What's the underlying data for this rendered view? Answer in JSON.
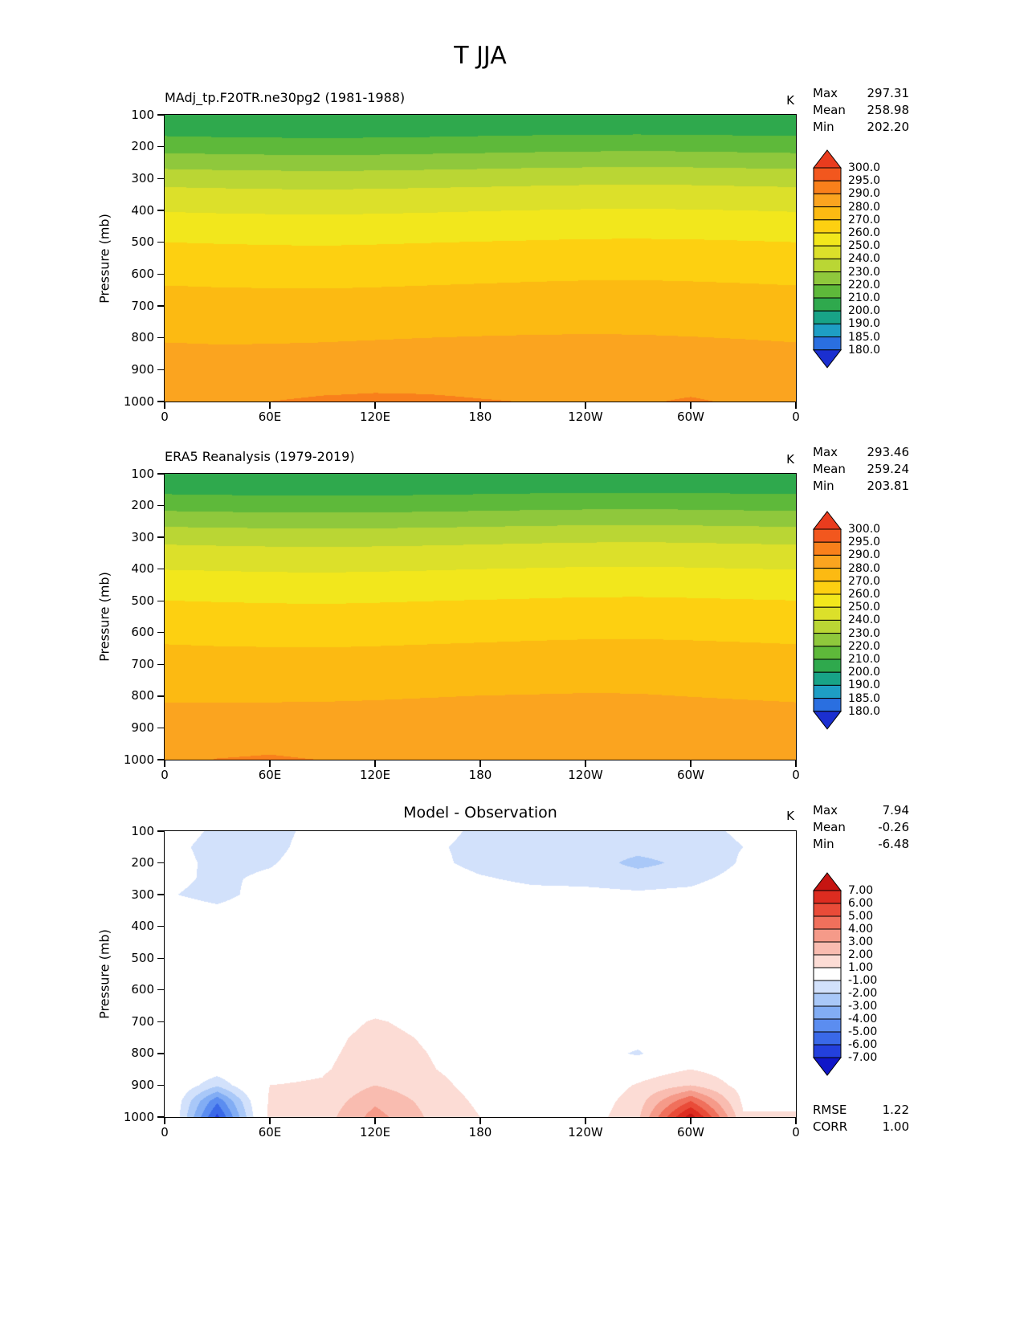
{
  "title": "T JJA",
  "chart_data": [
    {
      "type": "filled_contour",
      "title": "MAdj_tp.F20TR.ne30pg2 (1981-1988)",
      "unit": "K",
      "ylabel": "Pressure (mb)",
      "stats": [
        {
          "label": "Max",
          "value": "297.31"
        },
        {
          "label": "Mean",
          "value": "258.98"
        },
        {
          "label": "Min",
          "value": "202.20"
        }
      ],
      "x_ticks": [
        "0",
        "60E",
        "120E",
        "180",
        "120W",
        "60W",
        "0"
      ],
      "y_ticks": [
        100,
        200,
        300,
        400,
        500,
        600,
        700,
        800,
        900,
        1000
      ],
      "colorbar_labels": [
        "300.0",
        "295.0",
        "290.0",
        "280.0",
        "270.0",
        "260.0",
        "250.0",
        "240.0",
        "230.0",
        "220.0",
        "210.0",
        "200.0",
        "190.0",
        "185.0",
        "180.0"
      ],
      "levels": [
        180,
        185,
        190,
        200,
        210,
        220,
        230,
        240,
        250,
        260,
        270,
        280,
        290,
        295,
        300
      ],
      "colors": [
        "#1b2fd0",
        "#2a6fe0",
        "#1e9ec4",
        "#18a387",
        "#2fa94d",
        "#5eb93a",
        "#8fc83c",
        "#bad634",
        "#dce02a",
        "#f2e71c",
        "#fdd011",
        "#fcba12",
        "#fba41f",
        "#f9801b",
        "#f2571e",
        "#e93c1e"
      ],
      "lons": [
        0,
        30,
        60,
        90,
        120,
        150,
        180,
        210,
        240,
        270,
        300,
        330,
        360
      ],
      "pressures": [
        100,
        150,
        200,
        250,
        300,
        350,
        400,
        450,
        500,
        550,
        600,
        650,
        700,
        750,
        800,
        850,
        900,
        950,
        1000
      ],
      "values": [
        [
          203.0,
          202.8,
          202.6,
          202.5,
          202.6,
          202.8,
          203.0,
          203.2,
          203.4,
          203.5,
          203.4,
          203.2,
          203.0
        ],
        [
          207.0,
          206.5,
          206.2,
          206.0,
          206.2,
          206.5,
          207.0,
          207.4,
          207.7,
          207.8,
          207.6,
          207.3,
          207.0
        ],
        [
          216.0,
          215.4,
          215.0,
          214.8,
          215.0,
          215.5,
          216.0,
          216.5,
          217.0,
          217.2,
          217.0,
          216.5,
          216.0
        ],
        [
          226.0,
          225.4,
          225.0,
          224.8,
          225.0,
          225.5,
          226.0,
          226.6,
          227.0,
          227.2,
          227.0,
          226.5,
          226.0
        ],
        [
          236.0,
          235.4,
          235.0,
          234.8,
          235.0,
          235.5,
          236.0,
          236.6,
          237.0,
          237.2,
          237.0,
          236.5,
          236.0
        ],
        [
          243.5,
          243.0,
          242.6,
          242.4,
          242.7,
          243.1,
          243.6,
          244.0,
          244.4,
          244.6,
          244.3,
          243.9,
          243.5
        ],
        [
          249.5,
          249.0,
          248.7,
          248.5,
          248.8,
          249.2,
          249.7,
          250.1,
          250.5,
          250.6,
          250.4,
          250.0,
          249.5
        ],
        [
          255.0,
          254.6,
          254.3,
          254.1,
          254.4,
          254.8,
          255.2,
          255.6,
          256.0,
          256.1,
          255.9,
          255.5,
          255.0
        ],
        [
          260.0,
          259.6,
          259.3,
          259.1,
          259.4,
          259.8,
          260.2,
          260.6,
          261.0,
          261.1,
          260.9,
          260.5,
          260.0
        ],
        [
          264.0,
          263.6,
          263.3,
          263.2,
          263.5,
          263.9,
          264.3,
          264.7,
          265.0,
          265.1,
          264.9,
          264.5,
          264.0
        ],
        [
          267.5,
          267.1,
          266.9,
          266.8,
          267.1,
          267.5,
          267.9,
          268.3,
          268.6,
          268.7,
          268.4,
          268.0,
          267.5
        ],
        [
          271.0,
          270.6,
          270.4,
          270.3,
          270.6,
          271.0,
          271.4,
          271.8,
          272.1,
          272.2,
          271.9,
          271.5,
          271.0
        ],
        [
          274.0,
          273.6,
          273.4,
          273.4,
          273.7,
          274.1,
          274.5,
          274.9,
          275.2,
          275.2,
          274.9,
          274.5,
          274.0
        ],
        [
          276.8,
          276.4,
          276.3,
          276.4,
          276.7,
          277.1,
          277.5,
          277.8,
          278.0,
          278.0,
          277.7,
          277.3,
          276.8
        ],
        [
          279.3,
          279.0,
          279.0,
          279.2,
          279.6,
          280.0,
          280.3,
          280.5,
          280.6,
          280.5,
          280.2,
          279.8,
          279.3
        ],
        [
          281.7,
          281.4,
          281.6,
          282.0,
          282.4,
          282.8,
          283.0,
          283.1,
          283.0,
          282.8,
          282.6,
          282.2,
          281.7
        ],
        [
          284.0,
          283.8,
          284.2,
          284.8,
          285.3,
          285.6,
          285.6,
          285.5,
          285.2,
          285.0,
          285.2,
          284.6,
          284.0
        ],
        [
          286.3,
          286.2,
          287.0,
          288.0,
          288.6,
          288.6,
          288.2,
          287.8,
          287.4,
          287.2,
          288.0,
          286.9,
          286.3
        ],
        [
          288.5,
          288.6,
          290.0,
          291.2,
          291.6,
          291.2,
          290.4,
          289.8,
          289.3,
          289.2,
          290.8,
          289.0,
          288.5
        ]
      ]
    },
    {
      "type": "filled_contour",
      "title": "ERA5 Reanalysis (1979-2019)",
      "unit": "K",
      "ylabel": "Pressure (mb)",
      "stats": [
        {
          "label": "Max",
          "value": "293.46"
        },
        {
          "label": "Mean",
          "value": "259.24"
        },
        {
          "label": "Min",
          "value": "203.81"
        }
      ],
      "x_ticks": [
        "0",
        "60E",
        "120E",
        "180",
        "120W",
        "60W",
        "0"
      ],
      "y_ticks": [
        100,
        200,
        300,
        400,
        500,
        600,
        700,
        800,
        900,
        1000
      ],
      "colorbar_labels": [
        "300.0",
        "295.0",
        "290.0",
        "280.0",
        "270.0",
        "260.0",
        "250.0",
        "240.0",
        "230.0",
        "220.0",
        "210.0",
        "200.0",
        "190.0",
        "185.0",
        "180.0"
      ],
      "levels": [
        180,
        185,
        190,
        200,
        210,
        220,
        230,
        240,
        250,
        260,
        270,
        280,
        290,
        295,
        300
      ],
      "colors": [
        "#1b2fd0",
        "#2a6fe0",
        "#1e9ec4",
        "#18a387",
        "#2fa94d",
        "#5eb93a",
        "#8fc83c",
        "#bad634",
        "#dce02a",
        "#f2e71c",
        "#fdd011",
        "#fcba12",
        "#fba41f",
        "#f9801b",
        "#f2571e",
        "#e93c1e"
      ],
      "lons": [
        0,
        30,
        60,
        90,
        120,
        150,
        180,
        210,
        240,
        270,
        300,
        330,
        360
      ],
      "pressures": [
        100,
        150,
        200,
        250,
        300,
        350,
        400,
        450,
        500,
        550,
        600,
        650,
        700,
        750,
        800,
        850,
        900,
        950,
        1000
      ],
      "values": [
        [
          203.6,
          203.3,
          203.1,
          203.0,
          203.1,
          203.3,
          203.6,
          203.9,
          204.1,
          204.2,
          204.0,
          203.8,
          203.6
        ],
        [
          207.4,
          207.0,
          206.7,
          206.5,
          206.7,
          207.0,
          207.4,
          207.8,
          208.1,
          208.2,
          208.0,
          207.7,
          207.4
        ],
        [
          216.6,
          216.1,
          215.7,
          215.5,
          215.7,
          216.1,
          216.6,
          217.1,
          217.5,
          217.7,
          217.4,
          217.0,
          216.6
        ],
        [
          226.6,
          226.1,
          225.7,
          225.5,
          225.7,
          226.1,
          226.6,
          227.2,
          227.6,
          227.8,
          227.5,
          227.0,
          226.6
        ],
        [
          236.6,
          236.1,
          235.7,
          235.4,
          235.7,
          236.1,
          236.6,
          237.2,
          237.6,
          237.8,
          237.5,
          237.0,
          236.6
        ],
        [
          244.0,
          243.5,
          243.1,
          242.9,
          243.2,
          243.6,
          244.1,
          244.5,
          244.9,
          245.1,
          244.8,
          244.4,
          244.0
        ],
        [
          249.8,
          249.4,
          249.0,
          248.8,
          249.1,
          249.5,
          250.0,
          250.4,
          250.8,
          250.9,
          250.6,
          250.2,
          249.8
        ],
        [
          255.2,
          254.8,
          254.5,
          254.3,
          254.6,
          255.0,
          255.4,
          255.8,
          256.2,
          256.3,
          256.0,
          255.6,
          255.2
        ],
        [
          260.1,
          259.7,
          259.4,
          259.2,
          259.5,
          259.9,
          260.3,
          260.7,
          261.1,
          261.2,
          260.9,
          260.5,
          260.1
        ],
        [
          264.0,
          263.6,
          263.4,
          263.2,
          263.5,
          263.9,
          264.3,
          264.7,
          265.0,
          265.1,
          264.8,
          264.4,
          264.0
        ],
        [
          267.5,
          267.1,
          266.9,
          266.7,
          267.0,
          267.4,
          267.8,
          268.2,
          268.5,
          268.6,
          268.3,
          267.9,
          267.5
        ],
        [
          270.9,
          270.5,
          270.3,
          270.2,
          270.5,
          270.9,
          271.3,
          271.7,
          272.0,
          272.1,
          271.8,
          271.4,
          270.9
        ],
        [
          273.9,
          273.5,
          273.3,
          273.2,
          273.5,
          273.9,
          274.3,
          274.7,
          275.0,
          275.1,
          274.7,
          274.3,
          273.9
        ],
        [
          276.6,
          276.3,
          276.2,
          276.2,
          276.5,
          276.9,
          277.3,
          277.6,
          277.9,
          277.9,
          277.4,
          277.0,
          276.6
        ],
        [
          279.1,
          278.9,
          278.9,
          279.0,
          279.3,
          279.7,
          280.1,
          280.3,
          280.5,
          280.4,
          279.9,
          279.5,
          279.1
        ],
        [
          281.4,
          281.5,
          281.7,
          281.8,
          282.0,
          282.4,
          282.7,
          282.9,
          283.0,
          282.7,
          282.2,
          281.8,
          281.4
        ],
        [
          283.6,
          284.2,
          284.6,
          284.4,
          284.3,
          284.6,
          284.9,
          285.1,
          285.0,
          284.7,
          284.2,
          283.8,
          283.6
        ],
        [
          286.0,
          287.6,
          288.3,
          287.4,
          286.9,
          287.3,
          287.0,
          287.2,
          287.1,
          287.3,
          287.0,
          286.3,
          286.0
        ],
        [
          288.2,
          290.2,
          290.8,
          289.9,
          289.5,
          289.9,
          289.4,
          289.3,
          289.2,
          289.7,
          289.5,
          288.6,
          288.2
        ]
      ]
    },
    {
      "type": "filled_contour",
      "title": "Model - Observation",
      "unit": "K",
      "ylabel": "Pressure (mb)",
      "stats": [
        {
          "label": "Max",
          "value": "7.94"
        },
        {
          "label": "Mean",
          "value": "-0.26"
        },
        {
          "label": "Min",
          "value": "-6.48"
        }
      ],
      "extra": [
        {
          "label": "RMSE",
          "value": "1.22"
        },
        {
          "label": "CORR",
          "value": "1.00"
        }
      ],
      "x_ticks": [
        "0",
        "60E",
        "120E",
        "180",
        "120W",
        "60W",
        "0"
      ],
      "y_ticks": [
        100,
        200,
        300,
        400,
        500,
        600,
        700,
        800,
        900,
        1000
      ],
      "colorbar_labels": [
        "7.00",
        "6.00",
        "5.00",
        "4.00",
        "3.00",
        "2.00",
        "1.00",
        "-1.00",
        "-2.00",
        "-3.00",
        "-4.00",
        "-5.00",
        "-6.00",
        "-7.00"
      ],
      "levels": [
        -7,
        -6,
        -5,
        -4,
        -3,
        -2,
        -1,
        1,
        2,
        3,
        4,
        5,
        6,
        7
      ],
      "colors": [
        "#1016c8",
        "#2340dd",
        "#3a69e8",
        "#5b8df0",
        "#82adf4",
        "#a9c8f8",
        "#d2e1fb",
        "#ffffff",
        "#fcdcd5",
        "#f9bcb0",
        "#f59a89",
        "#f0705c",
        "#e94b38",
        "#dd2c20",
        "#c61512"
      ],
      "lons": [
        0,
        30,
        60,
        90,
        120,
        150,
        180,
        210,
        240,
        270,
        300,
        330,
        360
      ],
      "pressures": [
        100,
        150,
        200,
        250,
        300,
        350,
        400,
        450,
        500,
        550,
        600,
        650,
        700,
        750,
        800,
        850,
        900,
        950,
        1000
      ],
      "values": [
        [
          -0.4,
          -1.2,
          -1.3,
          -0.7,
          -0.4,
          -0.6,
          -1.2,
          -1.3,
          -1.2,
          -1.3,
          -1.2,
          -0.9,
          -0.4
        ],
        [
          -0.6,
          -1.4,
          -1.3,
          -0.5,
          -0.3,
          -0.8,
          -1.3,
          -1.5,
          -1.4,
          -1.5,
          -1.3,
          -1.0,
          -0.6
        ],
        [
          -0.5,
          -1.3,
          -1.1,
          -0.4,
          -0.3,
          -0.7,
          -1.3,
          -1.4,
          -1.3,
          -2.4,
          -1.6,
          -0.9,
          -0.5
        ],
        [
          -0.7,
          -1.2,
          -0.8,
          -0.3,
          -0.2,
          -0.4,
          -0.9,
          -1.2,
          -1.2,
          -1.3,
          -1.2,
          -0.7,
          -0.7
        ],
        [
          -0.9,
          -1.3,
          -0.6,
          -0.2,
          -0.1,
          -0.2,
          -0.5,
          -0.7,
          -0.8,
          -0.9,
          -0.8,
          -0.4,
          -0.9
        ],
        [
          -0.5,
          -0.8,
          -0.4,
          -0.1,
          -0.1,
          -0.1,
          -0.3,
          -0.4,
          -0.5,
          -0.5,
          -0.4,
          -0.3,
          -0.5
        ],
        [
          -0.3,
          -0.4,
          -0.2,
          -0.1,
          0.0,
          -0.1,
          -0.2,
          -0.2,
          -0.3,
          -0.3,
          -0.2,
          -0.2,
          -0.3
        ],
        [
          -0.2,
          -0.2,
          -0.1,
          0.0,
          0.0,
          0.0,
          -0.1,
          -0.1,
          -0.2,
          -0.2,
          -0.1,
          -0.1,
          -0.2
        ],
        [
          -0.1,
          -0.1,
          0.0,
          0.0,
          0.1,
          0.0,
          0.0,
          -0.1,
          -0.1,
          -0.1,
          0.0,
          0.0,
          -0.1
        ],
        [
          0.0,
          0.0,
          0.0,
          0.1,
          0.1,
          0.1,
          0.0,
          0.0,
          0.0,
          0.0,
          0.0,
          0.0,
          0.0
        ],
        [
          0.0,
          0.0,
          0.0,
          0.2,
          0.3,
          0.2,
          0.1,
          0.0,
          0.0,
          0.0,
          0.0,
          0.0,
          0.0
        ],
        [
          0.1,
          0.0,
          0.1,
          0.3,
          0.6,
          0.4,
          0.2,
          0.1,
          0.0,
          0.0,
          0.1,
          0.1,
          0.1
        ],
        [
          0.1,
          0.1,
          0.2,
          0.5,
          1.1,
          0.7,
          0.3,
          0.1,
          0.0,
          0.0,
          0.2,
          0.1,
          0.1
        ],
        [
          0.2,
          0.1,
          0.3,
          0.7,
          1.3,
          0.9,
          0.4,
          0.1,
          0.0,
          -0.4,
          0.6,
          0.2,
          0.2
        ],
        [
          0.2,
          0.1,
          0.4,
          0.8,
          1.4,
          1.0,
          0.4,
          0.1,
          -0.2,
          -1.2,
          0.8,
          0.3,
          0.2
        ],
        [
          0.3,
          -0.4,
          0.7,
          0.9,
          1.5,
          1.1,
          0.5,
          0.2,
          -0.3,
          0.4,
          1.0,
          0.4,
          0.3
        ],
        [
          0.5,
          -1.8,
          1.0,
          1.1,
          2.0,
          1.4,
          0.6,
          0.3,
          0.2,
          1.1,
          2.0,
          0.6,
          0.5
        ],
        [
          0.8,
          -4.8,
          1.2,
          1.3,
          2.8,
          1.7,
          0.8,
          0.4,
          0.3,
          1.5,
          5.0,
          0.8,
          0.8
        ],
        [
          1.1,
          -6.3,
          1.4,
          1.5,
          3.4,
          1.9,
          1.0,
          0.5,
          0.4,
          1.8,
          7.6,
          1.1,
          1.1
        ]
      ]
    }
  ]
}
